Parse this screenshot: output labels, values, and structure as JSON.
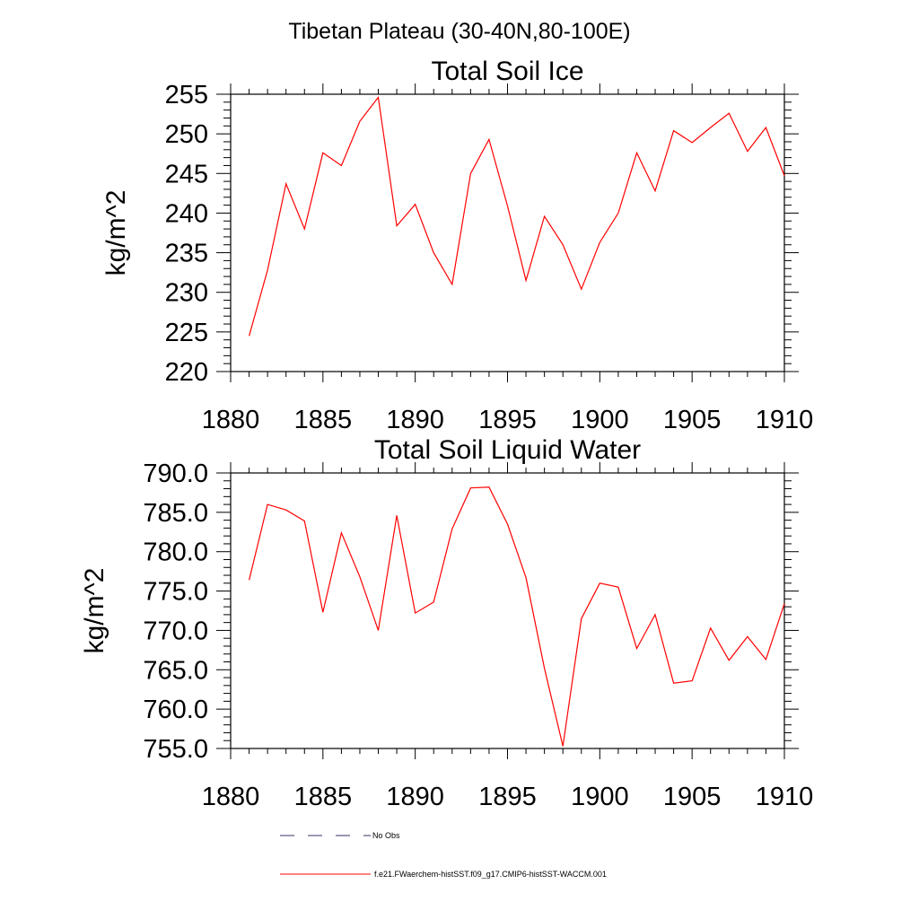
{
  "suptitle": "Tibetan Plateau (30-40N,80-100E)",
  "line_color": "#ff0000",
  "axis_color": "#000000",
  "chart_data": [
    {
      "type": "line",
      "title": "Total Soil Ice",
      "ylabel": "kg/m^2",
      "xlabel": "",
      "xlim": [
        1880,
        1910
      ],
      "ylim": [
        220,
        255
      ],
      "xticks": [
        1880,
        1885,
        1890,
        1895,
        1900,
        1905,
        1910
      ],
      "xtick_labels": [
        "1880",
        "1885",
        "1890",
        "1895",
        "1900",
        "1905",
        "1910"
      ],
      "yticks": [
        220,
        225,
        230,
        235,
        240,
        245,
        250,
        255
      ],
      "ytick_labels": [
        "220",
        "225",
        "230",
        "235",
        "240",
        "245",
        "250",
        "255"
      ],
      "grid": false,
      "series": [
        {
          "color": "#ff0000",
          "x": [
            1881,
            1882,
            1883,
            1884,
            1885,
            1886,
            1887,
            1888,
            1889,
            1890,
            1891,
            1892,
            1893,
            1894,
            1895,
            1896,
            1897,
            1898,
            1899,
            1900,
            1901,
            1902,
            1903,
            1904,
            1905,
            1906,
            1907,
            1908,
            1909,
            1910
          ],
          "y": [
            224.5,
            232.8,
            243.7,
            238.0,
            247.6,
            246.0,
            251.6,
            254.6,
            238.4,
            241.1,
            235.0,
            231.0,
            245.0,
            249.3,
            240.9,
            231.5,
            239.6,
            236.0,
            230.4,
            236.3,
            240.0,
            247.6,
            242.8,
            250.4,
            248.9,
            250.8,
            252.6,
            247.8,
            250.8,
            244.7
          ]
        }
      ]
    },
    {
      "type": "line",
      "title": "Total Soil Liquid Water",
      "ylabel": "kg/m^2",
      "xlabel": "",
      "xlim": [
        1880,
        1910
      ],
      "ylim": [
        755,
        790
      ],
      "xticks": [
        1880,
        1885,
        1890,
        1895,
        1900,
        1905,
        1910
      ],
      "xtick_labels": [
        "1880",
        "1885",
        "1890",
        "1895",
        "1900",
        "1905",
        "1910"
      ],
      "yticks": [
        755,
        760,
        765,
        770,
        775,
        780,
        785,
        790
      ],
      "ytick_labels": [
        "755.0",
        "760.0",
        "765.0",
        "770.0",
        "775.0",
        "780.0",
        "785.0",
        "790.0"
      ],
      "grid": false,
      "series": [
        {
          "color": "#ff0000",
          "x": [
            1881,
            1882,
            1883,
            1884,
            1885,
            1886,
            1887,
            1888,
            1889,
            1890,
            1891,
            1892,
            1893,
            1894,
            1895,
            1896,
            1897,
            1898,
            1899,
            1900,
            1901,
            1902,
            1903,
            1904,
            1905,
            1906,
            1907,
            1908,
            1909,
            1910
          ],
          "y": [
            776.4,
            786.0,
            785.3,
            783.9,
            772.3,
            782.4,
            776.8,
            770.0,
            784.6,
            772.2,
            773.6,
            782.9,
            788.1,
            788.2,
            783.5,
            776.7,
            765.2,
            755.3,
            771.5,
            776.0,
            775.5,
            767.7,
            772.0,
            763.3,
            763.6,
            770.3,
            766.2,
            769.2,
            766.3,
            773.4
          ]
        }
      ]
    }
  ],
  "legend": {
    "items": [
      {
        "label": "No Obs",
        "color": "#333366",
        "style": "dashed"
      },
      {
        "label": "f.e21.FWaerchem-histSST.f09_g17.CMIP6-histSST-WACCM.001",
        "color": "#ff0000",
        "style": "solid"
      }
    ]
  }
}
